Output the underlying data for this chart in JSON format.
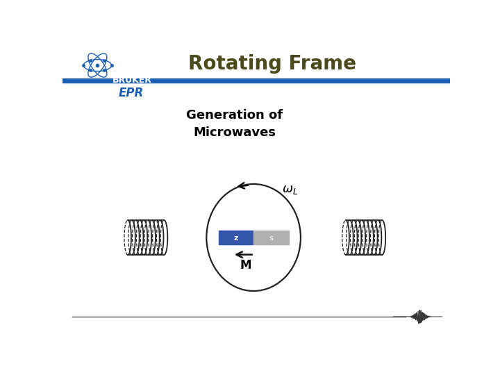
{
  "title": "Rotating Frame",
  "subtitle": "Generation of\nMicrowaves",
  "bg_color": "#ffffff",
  "title_color": "#4a4a1a",
  "subtitle_color": "#000000",
  "header_bar_color": "#1a5fb4",
  "bruker_text_color": "#111111",
  "epr_text_color": "#1a5fb4",
  "magnet_blue": "#3355aa",
  "magnet_gray": "#b0b0b0",
  "magnet_z_label": "z",
  "magnet_s_label": "s",
  "omega_label": "ωL",
  "M_label": "M",
  "coil_color": "#222222",
  "arrow_color": "#111111",
  "bottom_line_color": "#555555"
}
